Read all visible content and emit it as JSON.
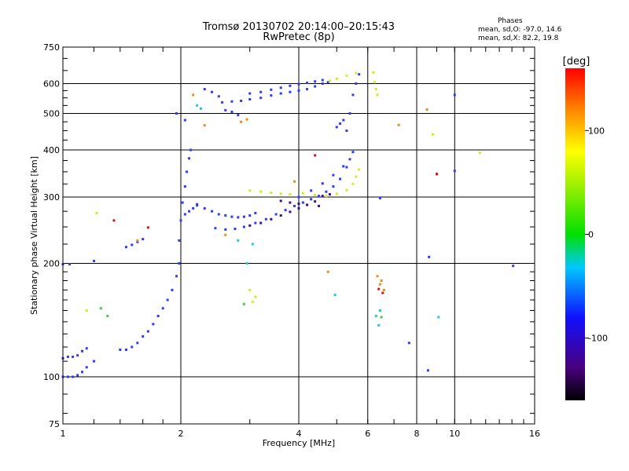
{
  "header": {
    "title_line1": "Tromsø 20130702 20:14:00–20:15:43",
    "title_line2": "RwPretec (8p)",
    "stats_title": "Phases",
    "stats_o": "mean, sd,O: -97.0, 14.6",
    "stats_x": "mean, sd,X:  82.2, 19.8"
  },
  "colorbar": {
    "label": "[deg]",
    "ticks": [
      "100",
      "0",
      "-100"
    ],
    "tick_values": [
      100,
      0,
      -100
    ],
    "range": [
      -160,
      160
    ]
  },
  "chart_data": {
    "type": "scatter",
    "xlabel": "Frequency [MHz]",
    "ylabel": "Stationary phase Virtual Height [km]",
    "x_scale": "log",
    "y_scale": "log",
    "xlim": [
      1,
      16
    ],
    "ylim": [
      75,
      750
    ],
    "x_ticks": [
      1,
      2,
      4,
      6,
      8,
      10,
      16
    ],
    "x_tick_labels": [
      "1",
      "2",
      "4",
      "6",
      "8",
      "10",
      "16"
    ],
    "y_ticks": [
      75,
      100,
      200,
      300,
      400,
      500,
      600,
      750
    ],
    "y_tick_labels": [
      "75",
      "100",
      "200",
      "300",
      "400",
      "500",
      "600",
      "750"
    ],
    "grid": true,
    "series": [
      {
        "color": "#2a3cff",
        "points": [
          [
            1.0,
            112
          ],
          [
            1.03,
            113
          ],
          [
            1.06,
            113
          ],
          [
            1.09,
            114
          ],
          [
            1.12,
            117
          ],
          [
            1.15,
            119
          ],
          [
            1.0,
            100
          ],
          [
            1.03,
            100
          ],
          [
            1.06,
            100
          ],
          [
            1.09,
            101
          ],
          [
            1.12,
            103
          ],
          [
            1.15,
            106
          ],
          [
            1.2,
            110
          ],
          [
            1.0,
            199
          ],
          [
            1.04,
            199
          ],
          [
            1.2,
            203
          ],
          [
            1.45,
            221
          ],
          [
            1.5,
            224
          ],
          [
            1.55,
            228
          ],
          [
            1.6,
            232
          ],
          [
            1.4,
            118
          ],
          [
            1.45,
            118
          ],
          [
            1.5,
            120
          ],
          [
            1.55,
            123
          ],
          [
            1.6,
            128
          ],
          [
            1.65,
            132
          ],
          [
            1.7,
            138
          ],
          [
            1.75,
            145
          ],
          [
            1.8,
            152
          ],
          [
            1.85,
            160
          ],
          [
            1.9,
            170
          ],
          [
            1.95,
            185
          ],
          [
            1.98,
            200
          ],
          [
            1.98,
            230
          ],
          [
            2.0,
            260
          ],
          [
            2.02,
            290
          ],
          [
            2.05,
            320
          ],
          [
            2.07,
            350
          ],
          [
            2.1,
            380
          ],
          [
            2.12,
            400
          ],
          [
            2.05,
            270
          ],
          [
            2.1,
            275
          ],
          [
            2.15,
            280
          ],
          [
            2.2,
            287
          ],
          [
            2.2,
            285
          ],
          [
            2.3,
            280
          ],
          [
            2.4,
            275
          ],
          [
            2.5,
            270
          ],
          [
            2.6,
            268
          ],
          [
            2.7,
            266
          ],
          [
            2.8,
            265
          ],
          [
            2.9,
            266
          ],
          [
            3.0,
            268
          ],
          [
            3.1,
            272
          ],
          [
            2.45,
            248
          ],
          [
            2.6,
            246
          ],
          [
            2.75,
            247
          ],
          [
            2.9,
            250
          ],
          [
            3.1,
            256
          ],
          [
            3.3,
            262
          ],
          [
            3.5,
            270
          ],
          [
            3.7,
            277
          ],
          [
            3.9,
            284
          ],
          [
            4.1,
            290
          ],
          [
            4.3,
            296
          ],
          [
            4.5,
            302
          ],
          [
            4.7,
            310
          ],
          [
            4.9,
            320
          ],
          [
            5.1,
            335
          ],
          [
            5.3,
            360
          ],
          [
            5.5,
            395
          ],
          [
            4.0,
            300
          ],
          [
            4.3,
            312
          ],
          [
            4.6,
            326
          ],
          [
            4.9,
            343
          ],
          [
            5.2,
            362
          ],
          [
            5.4,
            378
          ],
          [
            2.55,
            535
          ],
          [
            2.7,
            538
          ],
          [
            2.85,
            540
          ],
          [
            3.0,
            545
          ],
          [
            3.2,
            550
          ],
          [
            3.4,
            558
          ],
          [
            3.6,
            565
          ],
          [
            3.8,
            570
          ],
          [
            4.0,
            575
          ],
          [
            4.2,
            580
          ],
          [
            4.4,
            590
          ],
          [
            4.6,
            600
          ],
          [
            4.75,
            605
          ],
          [
            3.0,
            565
          ],
          [
            3.2,
            570
          ],
          [
            3.4,
            578
          ],
          [
            3.6,
            585
          ],
          [
            3.8,
            592
          ],
          [
            4.0,
            598
          ],
          [
            4.2,
            603
          ],
          [
            4.4,
            608
          ],
          [
            4.6,
            613
          ],
          [
            5.3,
            450
          ],
          [
            5.4,
            500
          ],
          [
            5.5,
            560
          ],
          [
            5.6,
            600
          ],
          [
            5.7,
            635
          ],
          [
            5.0,
            460
          ],
          [
            5.1,
            470
          ],
          [
            5.2,
            480
          ],
          [
            2.3,
            580
          ],
          [
            2.4,
            570
          ],
          [
            2.5,
            555
          ],
          [
            2.6,
            510
          ],
          [
            2.7,
            505
          ],
          [
            2.8,
            495
          ],
          [
            1.95,
            500
          ],
          [
            2.05,
            480
          ],
          [
            6.45,
            298
          ],
          [
            10.0,
            560
          ],
          [
            10.0,
            352
          ],
          [
            14.1,
            197
          ],
          [
            8.55,
            104
          ],
          [
            8.6,
            208
          ],
          [
            7.65,
            123
          ]
        ]
      },
      {
        "color": "#3a1090",
        "points": [
          [
            3.0,
            252
          ],
          [
            3.2,
            256
          ],
          [
            3.4,
            262
          ],
          [
            3.6,
            268
          ],
          [
            3.8,
            274
          ],
          [
            4.0,
            280
          ],
          [
            4.2,
            286
          ],
          [
            4.4,
            292
          ],
          [
            3.6,
            293
          ],
          [
            3.8,
            290
          ],
          [
            4.0,
            288
          ],
          [
            4.2,
            286
          ],
          [
            4.5,
            284
          ],
          [
            4.6,
            302
          ],
          [
            4.8,
            305
          ]
        ]
      },
      {
        "color": "#d8e820",
        "points": [
          [
            3.0,
            312
          ],
          [
            3.2,
            310
          ],
          [
            3.4,
            308
          ],
          [
            3.6,
            306
          ],
          [
            3.8,
            305
          ],
          [
            4.1,
            307
          ],
          [
            4.4,
            304
          ],
          [
            4.7,
            302
          ],
          [
            5.0,
            306
          ],
          [
            5.3,
            313
          ],
          [
            5.5,
            325
          ],
          [
            5.6,
            340
          ],
          [
            5.7,
            355
          ],
          [
            4.8,
            610
          ],
          [
            5.0,
            618
          ],
          [
            5.3,
            630
          ],
          [
            5.6,
            640
          ],
          [
            6.2,
            642
          ],
          [
            6.25,
            605
          ],
          [
            6.3,
            580
          ],
          [
            6.35,
            560
          ],
          [
            3.1,
            163
          ],
          [
            3.0,
            170
          ],
          [
            3.05,
            158
          ],
          [
            11.6,
            393
          ],
          [
            8.8,
            440
          ],
          [
            1.22,
            272
          ],
          [
            1.15,
            150
          ]
        ]
      },
      {
        "color": "#e09020",
        "points": [
          [
            2.15,
            560
          ],
          [
            2.3,
            465
          ],
          [
            2.85,
            475
          ],
          [
            2.95,
            482
          ],
          [
            3.9,
            330
          ],
          [
            4.75,
            190
          ],
          [
            6.35,
            185
          ],
          [
            6.5,
            180
          ],
          [
            6.6,
            170
          ],
          [
            6.45,
            176
          ],
          [
            8.5,
            512
          ],
          [
            9.0,
            346
          ],
          [
            7.2,
            466
          ],
          [
            2.6,
            238
          ],
          [
            1.55,
            230
          ]
        ]
      },
      {
        "color": "#e01010",
        "points": [
          [
            4.4,
            387
          ],
          [
            6.4,
            171
          ],
          [
            6.55,
            167
          ],
          [
            9.0,
            345
          ],
          [
            1.35,
            260
          ],
          [
            1.65,
            249
          ]
        ]
      },
      {
        "color": "#20c8e0",
        "points": [
          [
            2.25,
            515
          ],
          [
            2.2,
            525
          ],
          [
            2.95,
            200
          ],
          [
            3.05,
            225
          ],
          [
            2.8,
            230
          ],
          [
            6.3,
            145
          ],
          [
            6.4,
            137
          ],
          [
            9.1,
            144
          ],
          [
            6.45,
            150
          ],
          [
            4.95,
            165
          ]
        ]
      },
      {
        "color": "#40d040",
        "points": [
          [
            1.3,
            145
          ],
          [
            6.5,
            144
          ],
          [
            1.25,
            152
          ],
          [
            2.9,
            156
          ]
        ]
      }
    ]
  }
}
